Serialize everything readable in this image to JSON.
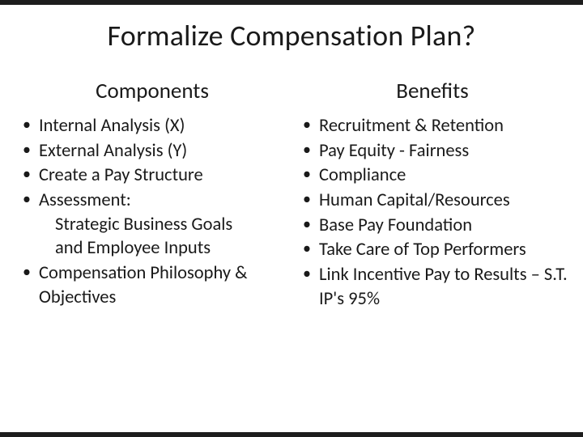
{
  "title": "Formalize Compensation Plan?",
  "title_fontsize": 36,
  "background_color": "#ffffff",
  "text_color": "#1a1a1a",
  "frame_bar_color": "#1d1d1d",
  "left_column": {
    "heading": "Components",
    "heading_fontsize": 27,
    "items": [
      {
        "text": "Internal Analysis (X)"
      },
      {
        "text": "External Analysis (Y)"
      },
      {
        "text": "Create a Pay Structure"
      },
      {
        "text": "Assessment:",
        "sublines": [
          "Strategic Business Goals",
          "and Employee Inputs"
        ]
      },
      {
        "text": "Compensation Philosophy & Objectives"
      }
    ],
    "body_fontsize": 22.5
  },
  "right_column": {
    "heading": "Benefits",
    "heading_fontsize": 27,
    "items": [
      {
        "text": "Recruitment & Retention"
      },
      {
        "text": "Pay Equity - Fairness"
      },
      {
        "text": "Compliance"
      },
      {
        "text": "Human Capital/Resources"
      },
      {
        "text": "Base Pay Foundation"
      },
      {
        "text": "Take Care of Top Performers"
      },
      {
        "text": "Link Incentive Pay to Results – S.T. IP's  95%"
      }
    ],
    "body_fontsize": 22.5
  }
}
